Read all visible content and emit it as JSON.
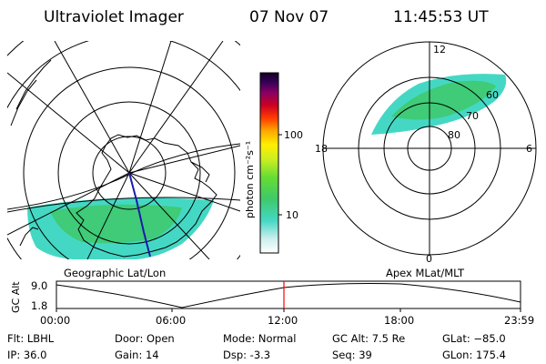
{
  "header": {
    "instrument": "Ultraviolet Imager",
    "date": "07 Nov 07",
    "time": "11:45:53 UT"
  },
  "colorbar": {
    "unit_label": "photon cm⁻²s⁻¹",
    "tick_100": "100",
    "tick_10": "10"
  },
  "geo_panel": {
    "caption": "Geographic Lat/Lon"
  },
  "apex_panel": {
    "caption": "Apex MLat/MLT",
    "mlt_12": "12",
    "mlt_18": "18",
    "mlt_6": "6",
    "mlt_0": "0",
    "lat_60": "60",
    "lat_70": "70",
    "lat_80": "80"
  },
  "altitude_plot": {
    "ylabel": "GC Alt",
    "ytick_top": "9.0",
    "ytick_bottom": "1.8",
    "xticks": [
      "00:00",
      "06:00",
      "12:00",
      "18:00",
      "23:59"
    ]
  },
  "info": {
    "filter": "Flt: LBHL",
    "ip": "IP: 36.0",
    "door": "Door: Open",
    "gain": "Gain: 14",
    "mode": "Mode: Normal",
    "dsp": "Dsp:    -3.3",
    "gc_alt": "GC Alt: 7.5 Re",
    "seq": "Seq: 39",
    "glat": "GLat: −85.0",
    "glon": "GLon: 175.4"
  },
  "colors": {
    "aurora_cyan": "#44d8c4",
    "aurora_green": "#3ec96a",
    "time_marker": "#ff0000",
    "track": "#1a1aaa"
  }
}
